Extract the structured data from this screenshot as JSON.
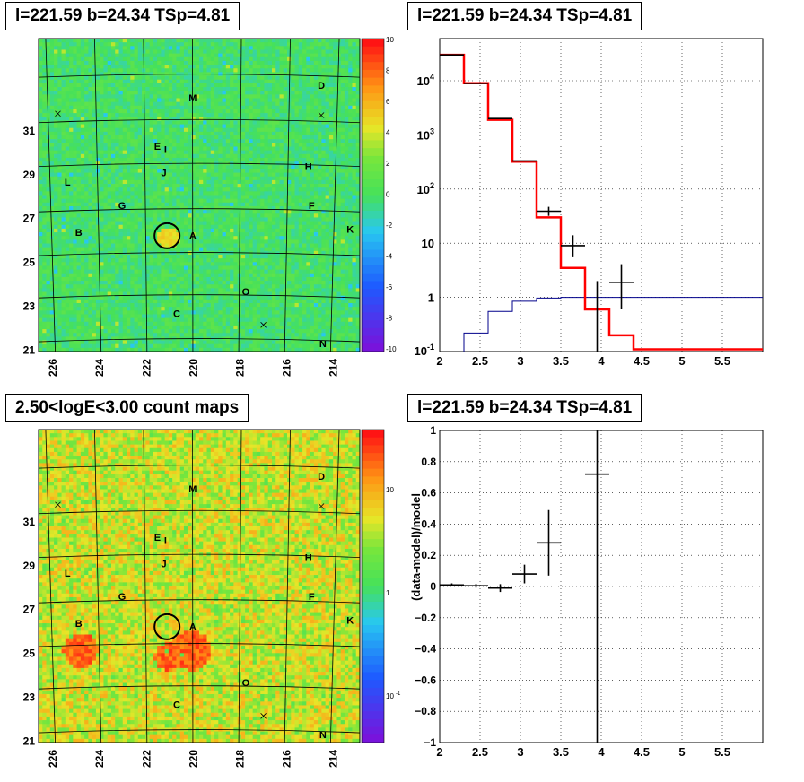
{
  "panels": {
    "top_left_title": "l=221.59 b=24.34 TSp=4.81",
    "top_right_title": "l=221.59 b=24.34 TSp=4.81",
    "bottom_left_title": "2.50<logE<3.00 count maps",
    "bottom_right_title": "l=221.59 b=24.34 TSp=4.81"
  },
  "colors": {
    "data": "#000000",
    "model": "#ff0000",
    "background_model": "#00008b"
  },
  "chart_data": [
    {
      "type": "heatmap",
      "name": "ts_map",
      "title": "l=221.59 b=24.34 TSp=4.81",
      "x_ticks": [
        "226",
        "224",
        "222",
        "220",
        "218",
        "216",
        "214"
      ],
      "y_ticks": [
        "21",
        "23",
        "25",
        "27",
        "29",
        "31"
      ],
      "colorbar_ticks": [
        "10",
        "8",
        "6",
        "4",
        "2",
        "0",
        "-2",
        "-4",
        "-6",
        "-8",
        "-10"
      ],
      "zlim": [
        -10,
        10
      ],
      "source_labels": [
        "A",
        "B",
        "C",
        "D",
        "E",
        "F",
        "G",
        "H",
        "I",
        "J",
        "K",
        "L",
        "M",
        "N",
        "O"
      ],
      "target": {
        "l": 221.59,
        "b": 24.34
      }
    },
    {
      "type": "line",
      "name": "spectrum",
      "title": "l=221.59 b=24.34 TSp=4.81",
      "log_y": true,
      "xlim": [
        2,
        6
      ],
      "ylim": [
        0.1,
        60000
      ],
      "x_ticks": [
        "2",
        "2.5",
        "3",
        "3.5",
        "4",
        "4.5",
        "5",
        "5.5"
      ],
      "y_ticks": [
        "10^-1",
        "1",
        "10",
        "10^2",
        "10^3",
        "10^4"
      ],
      "data_points": [
        {
          "x": 2.15,
          "y": 30000,
          "xerr": 0.15
        },
        {
          "x": 2.45,
          "y": 9000,
          "xerr": 0.15
        },
        {
          "x": 2.75,
          "y": 2000,
          "xerr": 0.15
        },
        {
          "x": 3.05,
          "y": 330,
          "xerr": 0.15
        },
        {
          "x": 3.35,
          "y": 39,
          "yerr_lo": 7,
          "yerr_hi": 8,
          "xerr": 0.15
        },
        {
          "x": 3.65,
          "y": 9,
          "yerr_lo": 3.5,
          "yerr_hi": 5,
          "xerr": 0.15
        },
        {
          "x": 3.95,
          "y": 1.0,
          "yerr_lo": 0.9,
          "yerr_hi": 1.0,
          "xerr": 0.0
        },
        {
          "x": 4.25,
          "y": 1.9,
          "yerr_lo": 1.3,
          "yerr_hi": 2.2,
          "xerr": 0.15
        }
      ],
      "model_steps": {
        "edges": [
          2.0,
          2.3,
          2.6,
          2.9,
          3.2,
          3.5,
          3.8,
          4.1,
          4.4,
          6.0
        ],
        "values": [
          30000,
          9000,
          1900,
          320,
          30,
          3.5,
          0.6,
          0.2,
          0.11
        ]
      },
      "background_steps": {
        "edges": [
          2.3,
          2.6,
          2.9,
          3.2,
          3.5,
          3.8,
          4.1,
          6.0
        ],
        "values": [
          0.22,
          0.55,
          0.85,
          0.97,
          1.0,
          1.0,
          1.0
        ]
      }
    },
    {
      "type": "heatmap",
      "name": "count_map",
      "title": "2.50<logE<3.00 count maps",
      "x_ticks": [
        "226",
        "224",
        "222",
        "220",
        "218",
        "216",
        "214"
      ],
      "y_ticks": [
        "21",
        "23",
        "25",
        "27",
        "29",
        "31"
      ],
      "colorbar_ticks": [
        "10",
        "1",
        "10^-1"
      ],
      "log_z": true,
      "source_labels": [
        "A",
        "B",
        "C",
        "D",
        "E",
        "F",
        "G",
        "H",
        "I",
        "J",
        "K",
        "L",
        "M",
        "N",
        "O"
      ],
      "target": {
        "l": 221.59,
        "b": 24.34
      }
    },
    {
      "type": "scatter",
      "name": "residuals",
      "title": "l=221.59 b=24.34 TSp=4.81",
      "ylabel": "(data-model)/model",
      "xlim": [
        2,
        6
      ],
      "ylim": [
        -1,
        1
      ],
      "x_ticks": [
        "2",
        "2.5",
        "3",
        "3.5",
        "4",
        "4.5",
        "5",
        "5.5"
      ],
      "y_ticks": [
        "−1",
        "−0.8",
        "−0.6",
        "−0.4",
        "−0.2",
        "0",
        "0.2",
        "0.4",
        "0.6",
        "0.8",
        "1"
      ],
      "points": [
        {
          "x": 2.15,
          "y": 0.01,
          "xerr": 0.15,
          "yerr": 0.01
        },
        {
          "x": 2.45,
          "y": 0.005,
          "xerr": 0.15,
          "yerr": 0.012
        },
        {
          "x": 2.75,
          "y": -0.01,
          "xerr": 0.15,
          "yerr": 0.025
        },
        {
          "x": 3.05,
          "y": 0.08,
          "xerr": 0.15,
          "yerr": 0.06
        },
        {
          "x": 3.35,
          "y": 0.28,
          "xerr": 0.15,
          "yerr": 0.21
        },
        {
          "x": 3.95,
          "y": 0.72,
          "xerr": 0.15,
          "yerr": 1.8
        }
      ]
    }
  ]
}
